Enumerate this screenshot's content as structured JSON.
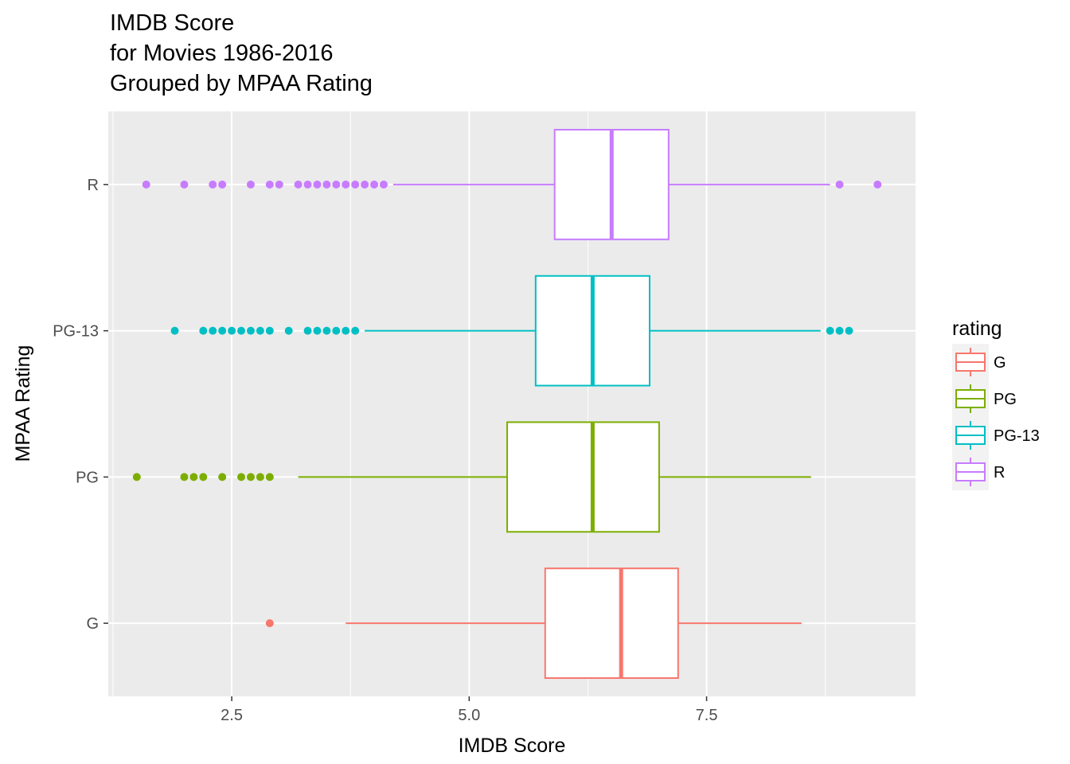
{
  "chart_data": {
    "type": "boxplot",
    "orientation": "horizontal",
    "title_lines": [
      "IMDB Score",
      "for Movies 1986-2016",
      "Grouped by MPAA Rating"
    ],
    "xlabel": "IMDB Score",
    "ylabel": "MPAA Rating",
    "xlim": [
      1.2,
      9.7
    ],
    "x_ticks": [
      2.5,
      5.0,
      7.5
    ],
    "x_tick_labels": [
      "2.5",
      "5.0",
      "7.5"
    ],
    "categories": [
      "G",
      "PG",
      "PG-13",
      "R"
    ],
    "grid": true,
    "legend": {
      "title": "rating",
      "position": "right",
      "entries": [
        "G",
        "PG",
        "PG-13",
        "R"
      ]
    },
    "series": [
      {
        "name": "G",
        "color": "#F8766D",
        "whisker_low": 3.7,
        "q1": 5.8,
        "median": 6.6,
        "q3": 7.2,
        "whisker_high": 8.5,
        "outliers": [
          2.9
        ]
      },
      {
        "name": "PG",
        "color": "#7CAE00",
        "whisker_low": 3.2,
        "q1": 5.4,
        "median": 6.3,
        "q3": 7.0,
        "whisker_high": 8.6,
        "outliers": [
          1.5,
          2.0,
          2.1,
          2.2,
          2.4,
          2.6,
          2.7,
          2.8,
          2.9
        ]
      },
      {
        "name": "PG-13",
        "color": "#00BFC4",
        "whisker_low": 3.9,
        "q1": 5.7,
        "median": 6.3,
        "q3": 6.9,
        "whisker_high": 8.7,
        "outliers": [
          1.9,
          2.2,
          2.3,
          2.4,
          2.5,
          2.6,
          2.7,
          2.8,
          2.9,
          3.1,
          3.3,
          3.4,
          3.5,
          3.6,
          3.7,
          3.8,
          8.8,
          8.9,
          9.0
        ]
      },
      {
        "name": "R",
        "color": "#C77CFF",
        "whisker_low": 4.2,
        "q1": 5.9,
        "median": 6.5,
        "q3": 7.1,
        "whisker_high": 8.8,
        "outliers": [
          1.6,
          2.0,
          2.3,
          2.4,
          2.7,
          2.9,
          3.0,
          3.2,
          3.3,
          3.4,
          3.5,
          3.6,
          3.7,
          3.8,
          3.9,
          4.0,
          4.1,
          8.9,
          9.3
        ]
      }
    ]
  }
}
